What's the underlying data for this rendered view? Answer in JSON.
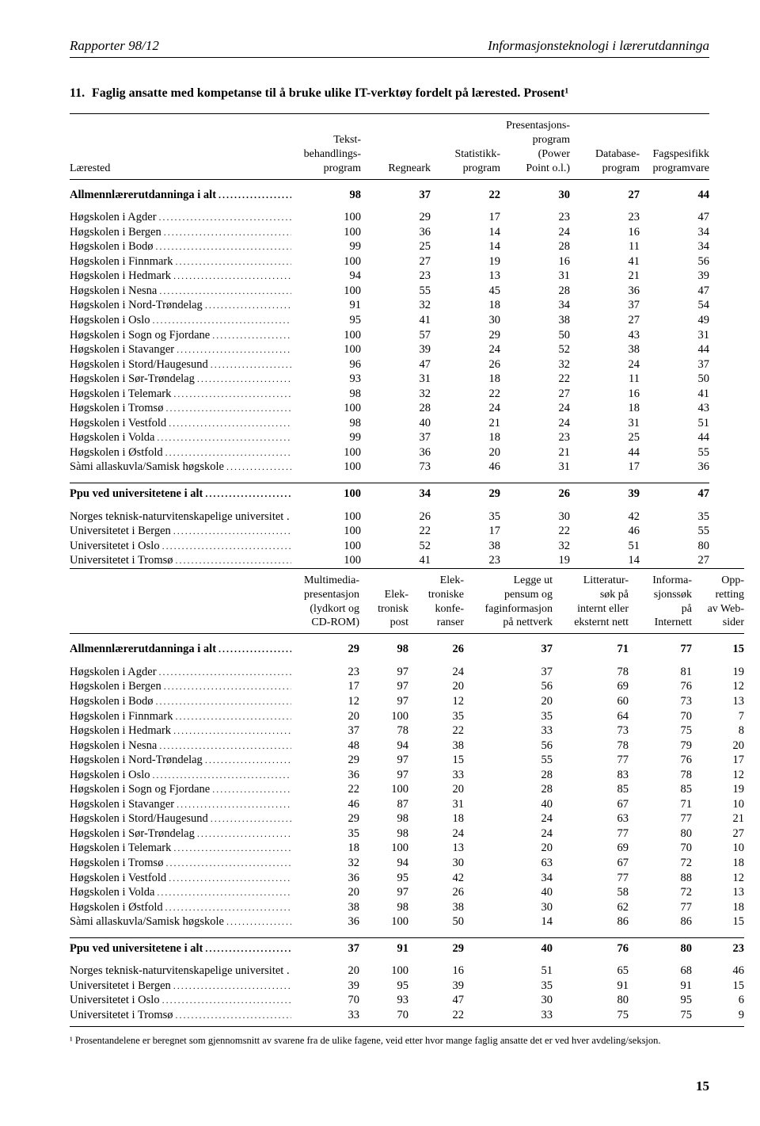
{
  "header": {
    "left": "Rapporter 98/12",
    "right": "Informasjonsteknologi i lærerutdanninga"
  },
  "title_num": "11.",
  "title": "Faglig ansatte med kompetanse til å bruke ulike IT-verktøy fordelt på lærested. Prosent¹",
  "table1": {
    "col_label": "Lærested",
    "cols": [
      "Tekst-\nbehandlings-\nprogram",
      "Regneark",
      "Statistikk-\nprogram",
      "Presentasjons-\nprogram (Power\nPoint o.l.)",
      "Database-\nprogram",
      "Fagspesifikk\nprogramvare"
    ],
    "sections": [
      {
        "heading": {
          "label": "Allmennlærerutdanninga i alt",
          "vals": [
            98,
            37,
            22,
            30,
            27,
            44
          ]
        },
        "rows": [
          {
            "label": "Høgskolen i Agder",
            "vals": [
              100,
              29,
              17,
              23,
              23,
              47
            ]
          },
          {
            "label": "Høgskolen i Bergen",
            "vals": [
              100,
              36,
              14,
              24,
              16,
              34
            ]
          },
          {
            "label": "Høgskolen i Bodø",
            "vals": [
              99,
              25,
              14,
              28,
              11,
              34
            ]
          },
          {
            "label": "Høgskolen i Finnmark",
            "vals": [
              100,
              27,
              19,
              16,
              41,
              56
            ]
          },
          {
            "label": "Høgskolen i Hedmark",
            "vals": [
              94,
              23,
              13,
              31,
              21,
              39
            ]
          },
          {
            "label": "Høgskolen i Nesna",
            "vals": [
              100,
              55,
              45,
              28,
              36,
              47
            ]
          },
          {
            "label": "Høgskolen i Nord-Trøndelag",
            "vals": [
              91,
              32,
              18,
              34,
              37,
              54
            ]
          },
          {
            "label": "Høgskolen i Oslo",
            "vals": [
              95,
              41,
              30,
              38,
              27,
              49
            ]
          },
          {
            "label": "Høgskolen i Sogn og Fjordane",
            "vals": [
              100,
              57,
              29,
              50,
              43,
              31
            ]
          },
          {
            "label": "Høgskolen i Stavanger",
            "vals": [
              100,
              39,
              24,
              52,
              38,
              44
            ]
          },
          {
            "label": "Høgskolen i Stord/Haugesund",
            "vals": [
              96,
              47,
              26,
              32,
              24,
              37
            ]
          },
          {
            "label": "Høgskolen i Sør-Trøndelag",
            "vals": [
              93,
              31,
              18,
              22,
              11,
              50
            ]
          },
          {
            "label": "Høgskolen i Telemark",
            "vals": [
              98,
              32,
              22,
              27,
              16,
              41
            ]
          },
          {
            "label": "Høgskolen i Tromsø",
            "vals": [
              100,
              28,
              24,
              24,
              18,
              43
            ]
          },
          {
            "label": "Høgskolen i Vestfold",
            "vals": [
              98,
              40,
              21,
              24,
              31,
              51
            ]
          },
          {
            "label": "Høgskolen i Volda",
            "vals": [
              99,
              37,
              18,
              23,
              25,
              44
            ]
          },
          {
            "label": "Høgskolen i Østfold",
            "vals": [
              100,
              36,
              20,
              21,
              44,
              55
            ]
          },
          {
            "label": "Sàmi allaskuvla/Samisk høgskole",
            "vals": [
              100,
              73,
              46,
              31,
              17,
              36
            ]
          }
        ]
      },
      {
        "heading": {
          "label": "Ppu ved universitetene i alt",
          "vals": [
            100,
            34,
            29,
            26,
            39,
            47
          ]
        },
        "rows": [
          {
            "label": "Norges teknisk-naturvitenskapelige universitet .",
            "vals": [
              100,
              26,
              35,
              30,
              42,
              35
            ],
            "nodots": true
          },
          {
            "label": "Universitetet i Bergen",
            "vals": [
              100,
              22,
              17,
              22,
              46,
              55
            ]
          },
          {
            "label": "Universitetet i Oslo",
            "vals": [
              100,
              52,
              38,
              32,
              51,
              80
            ]
          },
          {
            "label": "Universitetet i Tromsø",
            "vals": [
              100,
              41,
              23,
              19,
              14,
              27
            ]
          }
        ]
      }
    ]
  },
  "table2": {
    "cols": [
      "Multimedia-\npresentasjon\n(lydkort og\nCD-ROM)",
      "Elek-\ntronisk\npost",
      "Elek-\ntroniske\nkonfe-\nranser",
      "Legge ut\npensum og\nfaginformasjon\npå nettverk",
      "Litteratur-\nsøk på\ninternt eller\neksternt nett",
      "Informa-\nsjonssøk\npå\nInternett",
      "Opp-\nretting\nav Web-\nsider"
    ],
    "sections": [
      {
        "heading": {
          "label": "Allmennlærerutdanninga i alt",
          "vals": [
            29,
            98,
            26,
            37,
            71,
            77,
            15
          ]
        },
        "rows": [
          {
            "label": "Høgskolen i Agder",
            "vals": [
              23,
              97,
              24,
              37,
              78,
              81,
              19
            ]
          },
          {
            "label": "Høgskolen i Bergen",
            "vals": [
              17,
              97,
              20,
              56,
              69,
              76,
              12
            ]
          },
          {
            "label": "Høgskolen i Bodø",
            "vals": [
              12,
              97,
              12,
              20,
              60,
              73,
              13
            ]
          },
          {
            "label": "Høgskolen i Finnmark",
            "vals": [
              20,
              100,
              35,
              35,
              64,
              70,
              7
            ]
          },
          {
            "label": "Høgskolen i Hedmark",
            "vals": [
              37,
              78,
              22,
              33,
              73,
              75,
              8
            ]
          },
          {
            "label": "Høgskolen i Nesna",
            "vals": [
              48,
              94,
              38,
              56,
              78,
              79,
              20
            ]
          },
          {
            "label": "Høgskolen i Nord-Trøndelag",
            "vals": [
              29,
              97,
              15,
              55,
              77,
              76,
              17
            ]
          },
          {
            "label": "Høgskolen i Oslo",
            "vals": [
              36,
              97,
              33,
              28,
              83,
              78,
              12
            ]
          },
          {
            "label": "Høgskolen i Sogn og Fjordane",
            "vals": [
              22,
              100,
              20,
              28,
              85,
              85,
              19
            ]
          },
          {
            "label": "Høgskolen i Stavanger",
            "vals": [
              46,
              87,
              31,
              40,
              67,
              71,
              10
            ]
          },
          {
            "label": "Høgskolen i Stord/Haugesund",
            "vals": [
              29,
              98,
              18,
              24,
              63,
              77,
              21
            ]
          },
          {
            "label": "Høgskolen i Sør-Trøndelag",
            "vals": [
              35,
              98,
              24,
              24,
              77,
              80,
              27
            ]
          },
          {
            "label": "Høgskolen i Telemark",
            "vals": [
              18,
              100,
              13,
              20,
              69,
              70,
              10
            ]
          },
          {
            "label": "Høgskolen i Tromsø",
            "vals": [
              32,
              94,
              30,
              63,
              67,
              72,
              18
            ]
          },
          {
            "label": "Høgskolen i Vestfold",
            "vals": [
              36,
              95,
              42,
              34,
              77,
              88,
              12
            ]
          },
          {
            "label": "Høgskolen i Volda",
            "vals": [
              20,
              97,
              26,
              40,
              58,
              72,
              13
            ]
          },
          {
            "label": "Høgskolen i Østfold",
            "vals": [
              38,
              98,
              38,
              30,
              62,
              77,
              18
            ]
          },
          {
            "label": "Sàmi allaskuvla/Samisk høgskole",
            "vals": [
              36,
              100,
              50,
              14,
              86,
              86,
              15
            ]
          }
        ]
      },
      {
        "heading": {
          "label": "Ppu ved universitetene i alt",
          "vals": [
            37,
            91,
            29,
            40,
            76,
            80,
            23
          ]
        },
        "rows": [
          {
            "label": "Norges teknisk-naturvitenskapelige universitet .",
            "vals": [
              20,
              100,
              16,
              51,
              65,
              68,
              46
            ],
            "nodots": true
          },
          {
            "label": "Universitetet i Bergen",
            "vals": [
              39,
              95,
              39,
              35,
              91,
              91,
              15
            ]
          },
          {
            "label": "Universitetet i Oslo",
            "vals": [
              70,
              93,
              47,
              30,
              80,
              95,
              6
            ]
          },
          {
            "label": "Universitetet i Tromsø",
            "vals": [
              33,
              70,
              22,
              33,
              75,
              75,
              9
            ]
          }
        ]
      }
    ]
  },
  "footnote": "¹ Prosentandelene er beregnet som gjennomsnitt av svarene fra de ulike fagene, veid etter hvor mange faglig ansatte det er ved hver avdeling/seksjon.",
  "pageno": "15",
  "colors": {
    "text": "#000000",
    "bg": "#ffffff",
    "rule": "#000000"
  }
}
